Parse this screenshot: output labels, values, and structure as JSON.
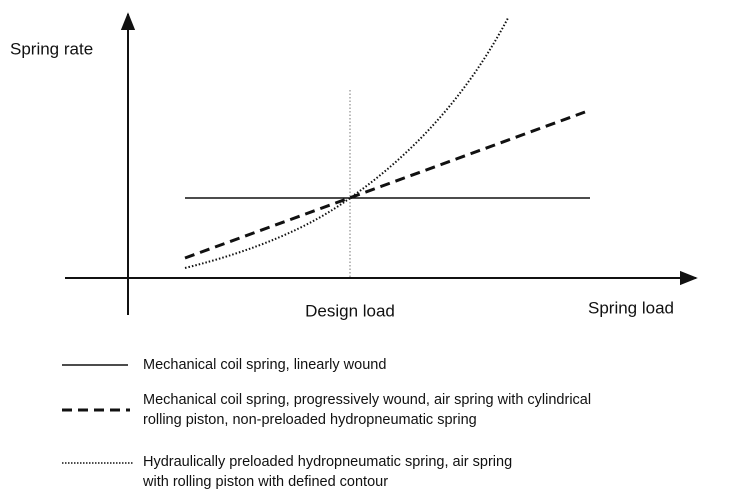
{
  "diagram": {
    "y_axis_label": "Spring rate",
    "design_load_label": "Design load",
    "x_axis_label": "Spring load",
    "legend": [
      {
        "lines": [
          "Mechanical coil spring, linearly wound"
        ]
      },
      {
        "lines": [
          "Mechanical coil spring, progressively wound, air spring with cylindrical",
          "rolling piston, non-preloaded hydropneumatic spring"
        ]
      },
      {
        "lines": [
          "Hydraulically preloaded hydropneumatic spring, air spring",
          "with rolling piston with defined contour"
        ]
      }
    ]
  }
}
